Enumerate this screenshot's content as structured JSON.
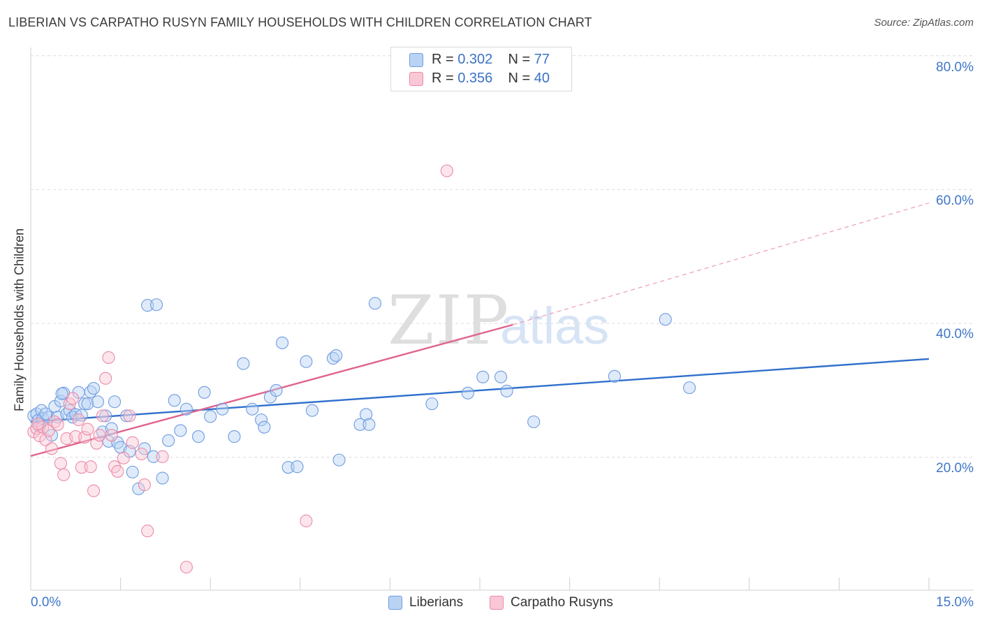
{
  "title": "LIBERIAN VS CARPATHO RUSYN FAMILY HOUSEHOLDS WITH CHILDREN CORRELATION CHART",
  "source": "Source: ZipAtlas.com",
  "watermark": {
    "zip": "ZIP",
    "atlas": "atlas"
  },
  "legend": {
    "rows": [
      {
        "r_label": "R = ",
        "r_value": "0.302",
        "n_label": "N = ",
        "n_value": "77",
        "color": "#6f9be0"
      },
      {
        "r_label": "R = ",
        "r_value": "0.356",
        "n_label": "N = ",
        "n_value": "40",
        "color": "#ea8ba8"
      }
    ]
  },
  "bottom_legend": [
    {
      "label": "Liberians",
      "color": "#6f9be0"
    },
    {
      "label": "Carpatho Rusyns",
      "color": "#ea8ba8"
    }
  ],
  "axes": {
    "ylabel": "Family Households with Children",
    "y_ticks": [
      "80.0%",
      "60.0%",
      "40.0%",
      "20.0%"
    ],
    "x_ticks": [
      "0.0%",
      "15.0%"
    ]
  },
  "chart_data": {
    "type": "scatter",
    "title": "LIBERIAN VS CARPATHO RUSYN FAMILY HOUSEHOLDS WITH CHILDREN CORRELATION CHART",
    "xlabel": "",
    "ylabel": "Family Households with Children",
    "xlim": [
      0,
      15
    ],
    "ylim": [
      0,
      80
    ],
    "grid": true,
    "legend_placement": "top-center",
    "series": [
      {
        "name": "Liberians",
        "color": "#6f9be0",
        "r": 0.302,
        "n": 77,
        "trend": {
          "x": [
            0,
            15
          ],
          "y": [
            25.3,
            34.7
          ],
          "dashed_extension": false
        },
        "points": [
          [
            0.05,
            26.2
          ],
          [
            0.1,
            26.5
          ],
          [
            0.12,
            25.5
          ],
          [
            0.15,
            24.6
          ],
          [
            0.18,
            27.0
          ],
          [
            0.2,
            25.8
          ],
          [
            0.3,
            26.0
          ],
          [
            0.35,
            23.3
          ],
          [
            0.4,
            27.6
          ],
          [
            0.45,
            26.0
          ],
          [
            0.5,
            28.4
          ],
          [
            0.55,
            29.6
          ],
          [
            0.6,
            26.5
          ],
          [
            0.65,
            27.0
          ],
          [
            0.7,
            26.0
          ],
          [
            0.75,
            26.4
          ],
          [
            0.8,
            29.7
          ],
          [
            0.9,
            28.0
          ],
          [
            0.95,
            28.0
          ],
          [
            1.0,
            29.8
          ],
          [
            1.05,
            30.3
          ],
          [
            1.2,
            23.8
          ],
          [
            1.25,
            26.2
          ],
          [
            1.3,
            22.4
          ],
          [
            1.35,
            24.3
          ],
          [
            1.4,
            28.3
          ],
          [
            1.45,
            22.2
          ],
          [
            1.5,
            21.5
          ],
          [
            1.6,
            26.2
          ],
          [
            1.65,
            20.9
          ],
          [
            1.7,
            17.8
          ],
          [
            1.8,
            15.3
          ],
          [
            1.9,
            21.3
          ],
          [
            1.95,
            42.7
          ],
          [
            2.1,
            42.8
          ],
          [
            2.2,
            16.9
          ],
          [
            2.3,
            22.5
          ],
          [
            2.4,
            28.5
          ],
          [
            2.5,
            24.0
          ],
          [
            2.6,
            27.2
          ],
          [
            2.8,
            23.1
          ],
          [
            2.9,
            29.7
          ],
          [
            3.0,
            26.1
          ],
          [
            3.2,
            27.2
          ],
          [
            3.4,
            23.1
          ],
          [
            3.55,
            34.0
          ],
          [
            3.7,
            27.2
          ],
          [
            3.85,
            25.6
          ],
          [
            3.9,
            24.5
          ],
          [
            4.0,
            29.0
          ],
          [
            4.1,
            30.0
          ],
          [
            4.2,
            37.1
          ],
          [
            4.3,
            18.5
          ],
          [
            4.45,
            18.6
          ],
          [
            4.6,
            34.3
          ],
          [
            4.7,
            27.0
          ],
          [
            5.05,
            34.8
          ],
          [
            5.1,
            35.2
          ],
          [
            5.15,
            19.6
          ],
          [
            5.5,
            24.9
          ],
          [
            5.6,
            26.4
          ],
          [
            5.65,
            24.9
          ],
          [
            5.75,
            43.0
          ],
          [
            6.7,
            28.0
          ],
          [
            7.3,
            29.6
          ],
          [
            7.55,
            32.0
          ],
          [
            7.85,
            32.0
          ],
          [
            7.95,
            29.9
          ],
          [
            8.4,
            25.3
          ],
          [
            9.75,
            32.1
          ],
          [
            10.6,
            40.6
          ],
          [
            11.0,
            30.4
          ],
          [
            0.25,
            26.5
          ],
          [
            0.52,
            29.5
          ],
          [
            0.85,
            26.3
          ],
          [
            1.12,
            28.3
          ],
          [
            2.05,
            20.1
          ]
        ]
      },
      {
        "name": "Carpatho Rusyns",
        "color": "#ea8ba8",
        "r": 0.356,
        "n": 40,
        "trend": {
          "x": [
            0,
            8.05
          ],
          "y": [
            20.2,
            39.8
          ],
          "dashed_extension": {
            "x": [
              8.05,
              15
            ],
            "y": [
              39.8,
              58.0
            ]
          }
        },
        "points": [
          [
            0.05,
            23.8
          ],
          [
            0.1,
            24.3
          ],
          [
            0.15,
            23.2
          ],
          [
            0.2,
            24.5
          ],
          [
            0.25,
            22.6
          ],
          [
            0.3,
            24.0
          ],
          [
            0.35,
            21.3
          ],
          [
            0.4,
            25.3
          ],
          [
            0.45,
            24.9
          ],
          [
            0.5,
            19.1
          ],
          [
            0.55,
            17.4
          ],
          [
            0.6,
            22.8
          ],
          [
            0.65,
            28.0
          ],
          [
            0.7,
            28.8
          ],
          [
            0.75,
            23.1
          ],
          [
            0.8,
            25.6
          ],
          [
            0.85,
            18.5
          ],
          [
            0.9,
            23.0
          ],
          [
            1.0,
            18.6
          ],
          [
            1.05,
            15.0
          ],
          [
            1.1,
            22.1
          ],
          [
            1.15,
            23.3
          ],
          [
            1.2,
            26.2
          ],
          [
            1.25,
            31.8
          ],
          [
            1.3,
            34.9
          ],
          [
            1.35,
            23.3
          ],
          [
            1.4,
            18.6
          ],
          [
            1.45,
            17.9
          ],
          [
            1.55,
            19.9
          ],
          [
            1.65,
            26.2
          ],
          [
            1.7,
            22.2
          ],
          [
            1.85,
            20.5
          ],
          [
            1.9,
            15.9
          ],
          [
            1.95,
            9.0
          ],
          [
            2.2,
            20.1
          ],
          [
            2.6,
            3.6
          ],
          [
            4.6,
            10.5
          ],
          [
            6.95,
            62.8
          ],
          [
            0.12,
            25.0
          ],
          [
            0.95,
            24.2
          ]
        ]
      }
    ]
  }
}
